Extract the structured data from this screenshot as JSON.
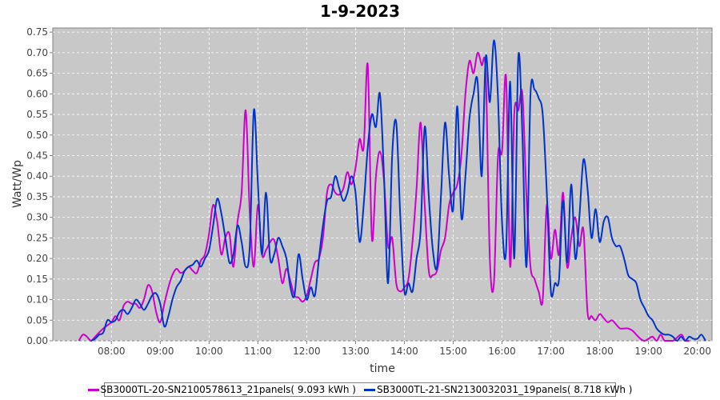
{
  "chart_data": {
    "type": "line",
    "title": "1-9-2023",
    "xlabel": "time",
    "ylabel": "Watt/Wp",
    "ylim": [
      0,
      0.76
    ],
    "xlim_hours": [
      6.8,
      20.3
    ],
    "x_tick_labels": [
      "08:00",
      "09:00",
      "10:00",
      "11:00",
      "12:00",
      "13:00",
      "14:00",
      "15:00",
      "16:00",
      "17:00",
      "18:00",
      "19:00",
      "20:00"
    ],
    "y_tick_labels": [
      "0.00",
      "0.05",
      "0.10",
      "0.15",
      "0.20",
      "0.25",
      "0.30",
      "0.35",
      "0.40",
      "0.45",
      "0.50",
      "0.55",
      "0.60",
      "0.65",
      "0.70",
      "0.75"
    ],
    "grid": true,
    "legend_position": "bottom",
    "series": [
      {
        "name": "SB3000TL-20-SN2100578613_21panels( 9.093 kWh )",
        "color": "#cc00cc",
        "points": [
          [
            "07:20",
            0.0
          ],
          [
            "07:25",
            0.015
          ],
          [
            "07:30",
            0.01
          ],
          [
            "07:35",
            0.0
          ],
          [
            "07:40",
            0.01
          ],
          [
            "07:50",
            0.03
          ],
          [
            "08:00",
            0.045
          ],
          [
            "08:05",
            0.06
          ],
          [
            "08:10",
            0.05
          ],
          [
            "08:15",
            0.085
          ],
          [
            "08:20",
            0.095
          ],
          [
            "08:25",
            0.09
          ],
          [
            "08:30",
            0.09
          ],
          [
            "08:35",
            0.08
          ],
          [
            "08:40",
            0.1
          ],
          [
            "08:45",
            0.135
          ],
          [
            "08:50",
            0.12
          ],
          [
            "08:55",
            0.07
          ],
          [
            "09:00",
            0.045
          ],
          [
            "09:05",
            0.09
          ],
          [
            "09:10",
            0.13
          ],
          [
            "09:15",
            0.16
          ],
          [
            "09:20",
            0.175
          ],
          [
            "09:25",
            0.165
          ],
          [
            "09:30",
            0.17
          ],
          [
            "09:35",
            0.18
          ],
          [
            "09:40",
            0.17
          ],
          [
            "09:45",
            0.165
          ],
          [
            "09:50",
            0.195
          ],
          [
            "09:55",
            0.21
          ],
          [
            "10:00",
            0.26
          ],
          [
            "10:05",
            0.33
          ],
          [
            "10:10",
            0.29
          ],
          [
            "10:15",
            0.21
          ],
          [
            "10:20",
            0.25
          ],
          [
            "10:25",
            0.26
          ],
          [
            "10:30",
            0.18
          ],
          [
            "10:35",
            0.29
          ],
          [
            "10:40",
            0.36
          ],
          [
            "10:45",
            0.56
          ],
          [
            "10:50",
            0.31
          ],
          [
            "10:55",
            0.18
          ],
          [
            "11:00",
            0.33
          ],
          [
            "11:05",
            0.21
          ],
          [
            "11:10",
            0.22
          ],
          [
            "11:15",
            0.24
          ],
          [
            "11:20",
            0.245
          ],
          [
            "11:25",
            0.2
          ],
          [
            "11:30",
            0.14
          ],
          [
            "11:35",
            0.175
          ],
          [
            "11:40",
            0.145
          ],
          [
            "11:45",
            0.11
          ],
          [
            "11:50",
            0.105
          ],
          [
            "11:55",
            0.095
          ],
          [
            "12:00",
            0.11
          ],
          [
            "12:05",
            0.15
          ],
          [
            "12:10",
            0.19
          ],
          [
            "12:15",
            0.2
          ],
          [
            "12:20",
            0.25
          ],
          [
            "12:25",
            0.36
          ],
          [
            "12:30",
            0.38
          ],
          [
            "12:35",
            0.36
          ],
          [
            "12:40",
            0.355
          ],
          [
            "12:45",
            0.37
          ],
          [
            "12:50",
            0.41
          ],
          [
            "12:55",
            0.38
          ],
          [
            "13:00",
            0.42
          ],
          [
            "13:05",
            0.49
          ],
          [
            "13:10",
            0.47
          ],
          [
            "13:15",
            0.67
          ],
          [
            "13:20",
            0.25
          ],
          [
            "13:25",
            0.4
          ],
          [
            "13:30",
            0.46
          ],
          [
            "13:35",
            0.39
          ],
          [
            "13:40",
            0.23
          ],
          [
            "13:45",
            0.25
          ],
          [
            "13:50",
            0.14
          ],
          [
            "13:55",
            0.12
          ],
          [
            "14:00",
            0.13
          ],
          [
            "14:05",
            0.15
          ],
          [
            "14:10",
            0.24
          ],
          [
            "14:15",
            0.37
          ],
          [
            "14:20",
            0.53
          ],
          [
            "14:25",
            0.33
          ],
          [
            "14:30",
            0.17
          ],
          [
            "14:35",
            0.16
          ],
          [
            "14:40",
            0.17
          ],
          [
            "14:45",
            0.22
          ],
          [
            "14:50",
            0.25
          ],
          [
            "14:55",
            0.33
          ],
          [
            "15:00",
            0.36
          ],
          [
            "15:05",
            0.38
          ],
          [
            "15:10",
            0.45
          ],
          [
            "15:15",
            0.6
          ],
          [
            "15:20",
            0.68
          ],
          [
            "15:25",
            0.65
          ],
          [
            "15:30",
            0.7
          ],
          [
            "15:35",
            0.67
          ],
          [
            "15:40",
            0.65
          ],
          [
            "15:45",
            0.2
          ],
          [
            "15:50",
            0.14
          ],
          [
            "15:55",
            0.45
          ],
          [
            "16:00",
            0.46
          ],
          [
            "16:05",
            0.64
          ],
          [
            "16:10",
            0.18
          ],
          [
            "16:15",
            0.55
          ],
          [
            "16:20",
            0.56
          ],
          [
            "16:25",
            0.6
          ],
          [
            "16:30",
            0.35
          ],
          [
            "16:35",
            0.18
          ],
          [
            "16:40",
            0.15
          ],
          [
            "16:45",
            0.12
          ],
          [
            "16:50",
            0.1
          ],
          [
            "16:55",
            0.33
          ],
          [
            "17:00",
            0.2
          ],
          [
            "17:05",
            0.27
          ],
          [
            "17:10",
            0.21
          ],
          [
            "17:15",
            0.36
          ],
          [
            "17:20",
            0.18
          ],
          [
            "17:25",
            0.25
          ],
          [
            "17:30",
            0.3
          ],
          [
            "17:35",
            0.23
          ],
          [
            "17:40",
            0.27
          ],
          [
            "17:45",
            0.07
          ],
          [
            "17:50",
            0.06
          ],
          [
            "17:55",
            0.05
          ],
          [
            "18:00",
            0.065
          ],
          [
            "18:05",
            0.055
          ],
          [
            "18:10",
            0.045
          ],
          [
            "18:15",
            0.05
          ],
          [
            "18:20",
            0.04
          ],
          [
            "18:25",
            0.03
          ],
          [
            "18:30",
            0.03
          ],
          [
            "18:35",
            0.03
          ],
          [
            "18:40",
            0.025
          ],
          [
            "18:45",
            0.015
          ],
          [
            "18:50",
            0.005
          ],
          [
            "18:55",
            0.0
          ],
          [
            "19:00",
            0.005
          ],
          [
            "19:05",
            0.01
          ],
          [
            "19:10",
            0.0
          ],
          [
            "19:15",
            0.015
          ],
          [
            "19:20",
            0.0
          ],
          [
            "19:30",
            0.0
          ],
          [
            "19:40",
            0.015
          ],
          [
            "19:45",
            0.0
          ],
          [
            "19:50",
            0.0
          ]
        ]
      },
      {
        "name": "SB3000TL-21-SN2130032031_19panels( 8.718 kWh )",
        "color": "#0033cc",
        "points": [
          [
            "07:35",
            0.0
          ],
          [
            "07:40",
            0.005
          ],
          [
            "07:45",
            0.015
          ],
          [
            "07:50",
            0.02
          ],
          [
            "07:55",
            0.05
          ],
          [
            "08:00",
            0.045
          ],
          [
            "08:05",
            0.05
          ],
          [
            "08:10",
            0.07
          ],
          [
            "08:15",
            0.075
          ],
          [
            "08:20",
            0.065
          ],
          [
            "08:25",
            0.08
          ],
          [
            "08:30",
            0.1
          ],
          [
            "08:35",
            0.09
          ],
          [
            "08:40",
            0.075
          ],
          [
            "08:45",
            0.09
          ],
          [
            "08:50",
            0.11
          ],
          [
            "08:55",
            0.115
          ],
          [
            "09:00",
            0.09
          ],
          [
            "09:05",
            0.035
          ],
          [
            "09:10",
            0.06
          ],
          [
            "09:15",
            0.1
          ],
          [
            "09:20",
            0.13
          ],
          [
            "09:25",
            0.145
          ],
          [
            "09:30",
            0.17
          ],
          [
            "09:35",
            0.18
          ],
          [
            "09:40",
            0.185
          ],
          [
            "09:45",
            0.195
          ],
          [
            "09:50",
            0.18
          ],
          [
            "09:55",
            0.2
          ],
          [
            "10:00",
            0.22
          ],
          [
            "10:05",
            0.28
          ],
          [
            "10:10",
            0.345
          ],
          [
            "10:15",
            0.31
          ],
          [
            "10:20",
            0.25
          ],
          [
            "10:25",
            0.19
          ],
          [
            "10:30",
            0.21
          ],
          [
            "10:35",
            0.28
          ],
          [
            "10:40",
            0.24
          ],
          [
            "10:45",
            0.18
          ],
          [
            "10:50",
            0.23
          ],
          [
            "10:55",
            0.56
          ],
          [
            "11:00",
            0.38
          ],
          [
            "11:05",
            0.21
          ],
          [
            "11:10",
            0.36
          ],
          [
            "11:15",
            0.2
          ],
          [
            "11:20",
            0.21
          ],
          [
            "11:25",
            0.25
          ],
          [
            "11:30",
            0.23
          ],
          [
            "11:35",
            0.2
          ],
          [
            "11:40",
            0.13
          ],
          [
            "11:45",
            0.11
          ],
          [
            "11:50",
            0.21
          ],
          [
            "11:55",
            0.15
          ],
          [
            "12:00",
            0.1
          ],
          [
            "12:05",
            0.13
          ],
          [
            "12:10",
            0.11
          ],
          [
            "12:15",
            0.2
          ],
          [
            "12:20",
            0.28
          ],
          [
            "12:25",
            0.34
          ],
          [
            "12:30",
            0.35
          ],
          [
            "12:35",
            0.4
          ],
          [
            "12:40",
            0.37
          ],
          [
            "12:45",
            0.34
          ],
          [
            "12:50",
            0.36
          ],
          [
            "12:55",
            0.4
          ],
          [
            "13:00",
            0.36
          ],
          [
            "13:05",
            0.24
          ],
          [
            "13:10",
            0.33
          ],
          [
            "13:15",
            0.47
          ],
          [
            "13:20",
            0.55
          ],
          [
            "13:25",
            0.52
          ],
          [
            "13:30",
            0.6
          ],
          [
            "13:35",
            0.4
          ],
          [
            "13:40",
            0.14
          ],
          [
            "13:45",
            0.45
          ],
          [
            "13:50",
            0.53
          ],
          [
            "13:55",
            0.3
          ],
          [
            "14:00",
            0.12
          ],
          [
            "14:05",
            0.14
          ],
          [
            "14:10",
            0.12
          ],
          [
            "14:15",
            0.2
          ],
          [
            "14:20",
            0.27
          ],
          [
            "14:25",
            0.52
          ],
          [
            "14:30",
            0.35
          ],
          [
            "14:35",
            0.22
          ],
          [
            "14:40",
            0.18
          ],
          [
            "14:45",
            0.35
          ],
          [
            "14:50",
            0.53
          ],
          [
            "14:55",
            0.4
          ],
          [
            "15:00",
            0.32
          ],
          [
            "15:05",
            0.57
          ],
          [
            "15:10",
            0.3
          ],
          [
            "15:15",
            0.4
          ],
          [
            "15:20",
            0.54
          ],
          [
            "15:25",
            0.6
          ],
          [
            "15:30",
            0.63
          ],
          [
            "15:35",
            0.4
          ],
          [
            "15:40",
            0.69
          ],
          [
            "15:45",
            0.58
          ],
          [
            "15:50",
            0.73
          ],
          [
            "15:55",
            0.59
          ],
          [
            "16:00",
            0.29
          ],
          [
            "16:05",
            0.22
          ],
          [
            "16:10",
            0.63
          ],
          [
            "16:15",
            0.2
          ],
          [
            "16:20",
            0.69
          ],
          [
            "16:25",
            0.5
          ],
          [
            "16:30",
            0.18
          ],
          [
            "16:35",
            0.6
          ],
          [
            "16:40",
            0.61
          ],
          [
            "16:45",
            0.59
          ],
          [
            "16:50",
            0.55
          ],
          [
            "16:55",
            0.36
          ],
          [
            "17:00",
            0.12
          ],
          [
            "17:05",
            0.14
          ],
          [
            "17:10",
            0.15
          ],
          [
            "17:15",
            0.34
          ],
          [
            "17:20",
            0.19
          ],
          [
            "17:25",
            0.38
          ],
          [
            "17:30",
            0.2
          ],
          [
            "17:35",
            0.3
          ],
          [
            "17:40",
            0.44
          ],
          [
            "17:45",
            0.37
          ],
          [
            "17:50",
            0.25
          ],
          [
            "17:55",
            0.32
          ],
          [
            "18:00",
            0.24
          ],
          [
            "18:05",
            0.29
          ],
          [
            "18:10",
            0.3
          ],
          [
            "18:15",
            0.25
          ],
          [
            "18:20",
            0.23
          ],
          [
            "18:25",
            0.23
          ],
          [
            "18:30",
            0.2
          ],
          [
            "18:35",
            0.16
          ],
          [
            "18:40",
            0.15
          ],
          [
            "18:45",
            0.14
          ],
          [
            "18:50",
            0.1
          ],
          [
            "18:55",
            0.08
          ],
          [
            "19:00",
            0.06
          ],
          [
            "19:05",
            0.05
          ],
          [
            "19:10",
            0.03
          ],
          [
            "19:15",
            0.02
          ],
          [
            "19:20",
            0.015
          ],
          [
            "19:25",
            0.015
          ],
          [
            "19:30",
            0.01
          ],
          [
            "19:35",
            0.0
          ],
          [
            "19:40",
            0.01
          ],
          [
            "19:45",
            0.0
          ],
          [
            "19:50",
            0.01
          ],
          [
            "19:55",
            0.005
          ],
          [
            "20:00",
            0.005
          ],
          [
            "20:05",
            0.015
          ],
          [
            "20:10",
            0.0
          ]
        ]
      }
    ]
  }
}
